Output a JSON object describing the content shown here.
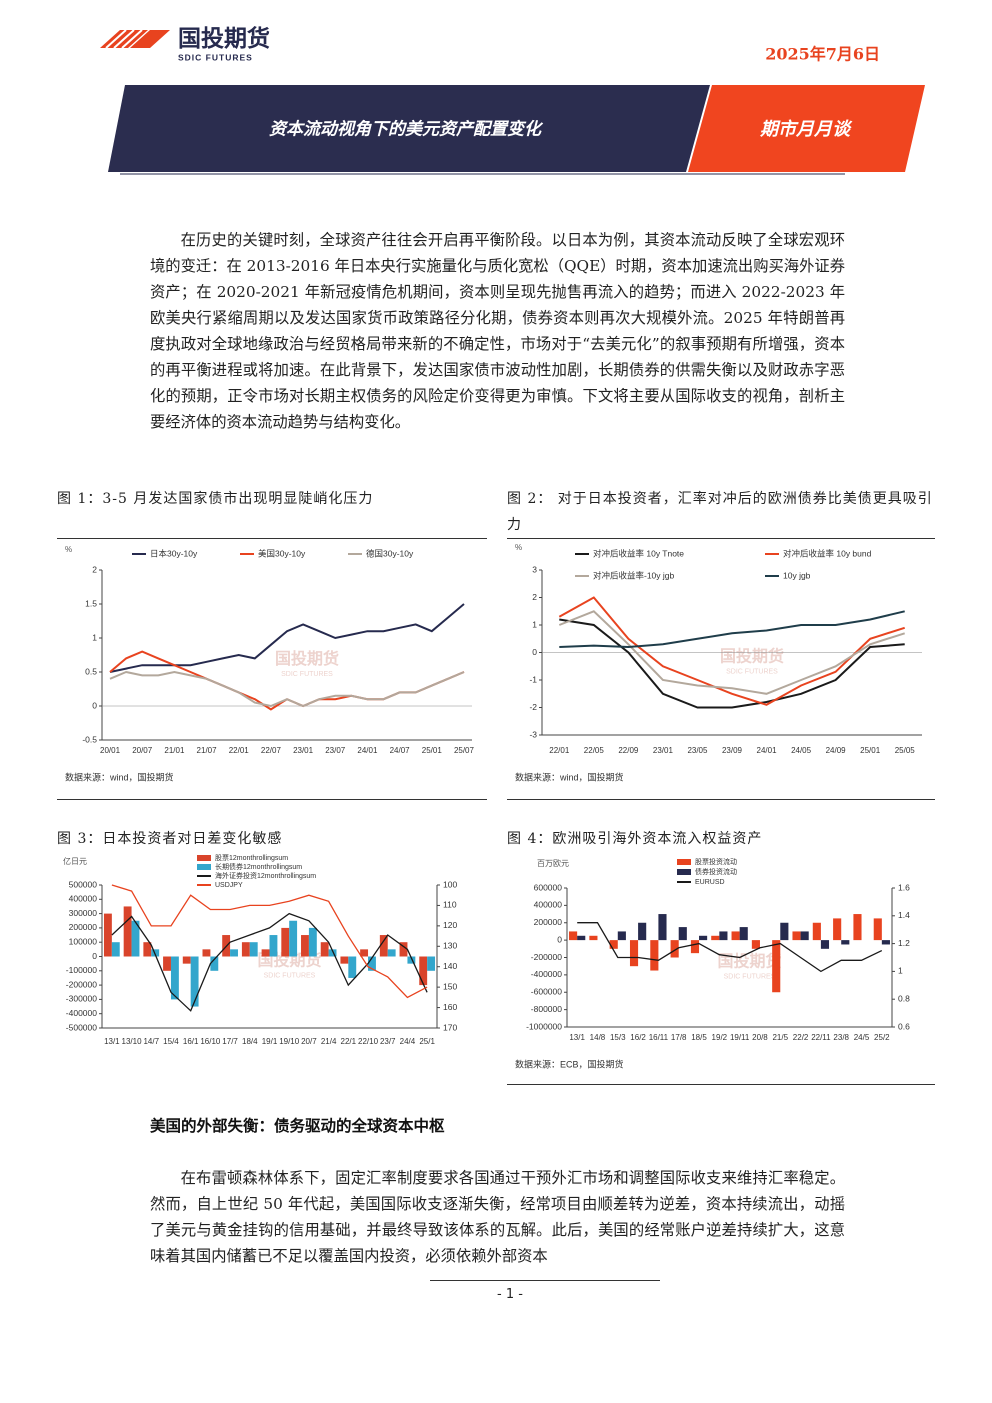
{
  "header": {
    "logo_cn": "国投期货",
    "logo_en": "SDIC FUTURES",
    "date": "2025年7月6日",
    "title": "资本流动视角下的美元资产配置变化",
    "column": "期市月月谈"
  },
  "intro": "在历史的关键时刻，全球资产往往会开启再平衡阶段。以日本为例，其资本流动反映了全球宏观环境的变迁：在 2013-2016 年日本央行实施量化与质化宽松（QQE）时期，资本加速流出购买海外证券资产；在 2020-2021 年新冠疫情危机期间，资本则呈现先抛售再流入的趋势；而进入 2022-2023 年欧美央行紧缩周期以及发达国家货币政策路径分化期，债券资本则再次大规模外流。2025 年特朗普再度执政对全球地缘政治与经贸格局带来新的不确定性，市场对于“去美元化”的叙事预期有所增强，资本的再平衡进程或将加速。在此背景下，发达国家债市波动性加剧，长期债券的供需失衡以及财政赤字恶化的预期，正令市场对长期主权债务的风险定价变得更为审慎。下文将主要从国际收支的视角，剖析主要经济体的资本流动趋势与结构变化。",
  "figures": [
    {
      "caption": "图 1：3-5 月发达国家债市出现明显陡峭化压力",
      "chart": {
        "type": "line",
        "y_label": "%",
        "ylim": [
          -0.5,
          2
        ],
        "yticks": [
          -0.5,
          0,
          0.5,
          1,
          1.5,
          2
        ],
        "categories": [
          "20/01",
          null,
          "20/07",
          null,
          "21/01",
          null,
          "21/07",
          null,
          "22/01",
          null,
          "22/07",
          null,
          "23/01",
          null,
          "23/07",
          null,
          "24/01",
          null,
          "24/07",
          null,
          "25/01",
          null,
          "25/07"
        ],
        "series": [
          {
            "name": "日本30y-10y",
            "color": "#262a4e",
            "values": [
              0.5,
              0.55,
              0.6,
              0.6,
              0.6,
              0.6,
              0.65,
              0.7,
              0.75,
              0.7,
              0.9,
              1.1,
              1.2,
              1.1,
              1.0,
              1.05,
              1.1,
              1.1,
              1.15,
              1.2,
              1.1,
              1.3,
              1.5
            ]
          },
          {
            "name": "美国30y-10y",
            "color": "#e8431f",
            "values": [
              0.5,
              0.7,
              0.8,
              0.7,
              0.6,
              0.5,
              0.4,
              0.3,
              0.2,
              0.1,
              -0.05,
              0.1,
              0.0,
              0.1,
              0.1,
              0.15,
              0.1,
              0.1,
              0.2,
              0.2,
              0.3,
              0.4,
              0.5
            ]
          },
          {
            "name": "德国30y-10y",
            "color": "#b3a89c",
            "values": [
              0.4,
              0.5,
              0.45,
              0.45,
              0.5,
              0.45,
              0.4,
              0.3,
              0.2,
              0.05,
              0.0,
              0.1,
              0.0,
              0.1,
              0.15,
              0.15,
              0.1,
              0.1,
              0.2,
              0.2,
              0.3,
              0.4,
              0.5
            ]
          }
        ],
        "source": "数据来源：wind，国投期货"
      }
    },
    {
      "caption": "图 2：  对于日本投资者，汇率对冲后的欧洲债券比美债更具吸引力",
      "chart": {
        "type": "line",
        "y_label": "%",
        "ylim": [
          -3,
          3
        ],
        "yticks": [
          -3,
          -2,
          -1,
          0,
          1,
          2,
          3
        ],
        "categories": [
          "22/01",
          "22/05",
          "22/09",
          "23/01",
          "23/05",
          "23/09",
          "24/01",
          "24/05",
          "24/09",
          "25/01",
          "25/05"
        ],
        "series": [
          {
            "name": "对冲后收益率 10y Tnote",
            "color": "#1a1a1a",
            "values": [
              1.2,
              1.0,
              0.0,
              -1.5,
              -2.0,
              -2.0,
              -1.8,
              -1.5,
              -1.0,
              0.2,
              0.3
            ]
          },
          {
            "name": "对冲后收益率 10y bund",
            "color": "#e8431f",
            "values": [
              1.3,
              2.0,
              0.5,
              -0.5,
              -1.0,
              -1.5,
              -1.9,
              -1.2,
              -0.7,
              0.5,
              0.9
            ]
          },
          {
            "name": "对冲后收益率-10y jgb",
            "color": "#b3a89c",
            "values": [
              1.0,
              1.5,
              0.3,
              -1.0,
              -1.2,
              -1.3,
              -1.5,
              -1.0,
              -0.5,
              0.3,
              0.7
            ]
          },
          {
            "name": "10y jgb",
            "color": "#1f3d4a",
            "values": [
              0.2,
              0.25,
              0.2,
              0.3,
              0.5,
              0.7,
              0.8,
              1.0,
              1.0,
              1.2,
              1.5
            ]
          }
        ],
        "source": "数据来源：wind，国投期货"
      }
    },
    {
      "caption": "图 3：日本投资者对日差变化敏感",
      "chart": {
        "type": "combo",
        "y_label": "亿日元",
        "ylim": [
          -500000,
          500000
        ],
        "yticks": [
          -500000,
          -400000,
          -300000,
          -200000,
          -100000,
          0,
          100000,
          200000,
          300000,
          400000,
          500000
        ],
        "y2lim": [
          170,
          100
        ],
        "y2ticks": [
          100,
          110,
          120,
          130,
          140,
          150,
          160,
          170
        ],
        "categories": [
          "13/1",
          "13/10",
          "14/7",
          "15/4",
          "16/1",
          "16/10",
          "17/7",
          "18/4",
          "19/1",
          "19/10",
          "20/7",
          "21/4",
          "22/1",
          "22/10",
          "23/7",
          "24/4",
          "25/1"
        ],
        "series": [
          {
            "name": "股票12monthrollingsum",
            "kind": "bar",
            "color": "#d9442b",
            "values": [
              300000,
              350000,
              100000,
              -100000,
              -50000,
              50000,
              150000,
              100000,
              50000,
              200000,
              150000,
              100000,
              -50000,
              50000,
              150000,
              100000,
              -200000
            ]
          },
          {
            "name": "长期债券12monthrollingsum",
            "kind": "bar",
            "color": "#33a6cc",
            "values": [
              100000,
              250000,
              50000,
              -300000,
              -350000,
              -100000,
              50000,
              100000,
              150000,
              250000,
              200000,
              50000,
              -150000,
              -100000,
              50000,
              -50000,
              -100000
            ]
          },
          {
            "name": "海外证券投资12monthrollingsum",
            "kind": "line",
            "color": "#1a1a1a",
            "values": [
              150000,
              280000,
              80000,
              -250000,
              -380000,
              -50000,
              100000,
              150000,
              200000,
              300000,
              250000,
              100000,
              -200000,
              -50000,
              150000,
              50000,
              -250000
            ]
          },
          {
            "name": "USDJPY",
            "kind": "line",
            "axis": "y2",
            "color": "#e8431f",
            "values": [
              100,
              103,
              120,
              120,
              105,
              112,
              112,
              110,
              110,
              108,
              105,
              108,
              125,
              140,
              145,
              155,
              150
            ]
          }
        ]
      }
    },
    {
      "caption": "图 4：欧洲吸引海外资本流入权益资产",
      "chart": {
        "type": "combo",
        "y_label": "百万欧元",
        "ylim": [
          -1000000,
          600000
        ],
        "yticks": [
          -1000000,
          -800000,
          -600000,
          -400000,
          -200000,
          0,
          200000,
          400000,
          600000
        ],
        "y2lim": [
          0.6,
          1.6
        ],
        "y2ticks": [
          0.6,
          0.8,
          1,
          1.2,
          1.4,
          1.6
        ],
        "categories": [
          "13/1",
          "14/8",
          "15/3",
          "16/2",
          "16/11",
          "17/8",
          "18/5",
          "19/2",
          "19/11",
          "20/8",
          "21/5",
          "22/2",
          "22/11",
          "23/8",
          "24/5",
          "25/2"
        ],
        "series": [
          {
            "name": "股票投资流动",
            "kind": "bar",
            "color": "#e8431f",
            "values": [
              100000,
              50000,
              -100000,
              -300000,
              -350000,
              -200000,
              -150000,
              50000,
              100000,
              -100000,
              -600000,
              100000,
              200000,
              250000,
              300000,
              250000
            ]
          },
          {
            "name": "债券投资流动",
            "kind": "bar",
            "color": "#262a4e",
            "values": [
              50000,
              0,
              100000,
              200000,
              300000,
              150000,
              50000,
              100000,
              150000,
              0,
              200000,
              100000,
              -100000,
              -50000,
              0,
              -50000
            ]
          },
          {
            "name": "EURUSD",
            "kind": "line",
            "axis": "y2",
            "color": "#1a1a1a",
            "values": [
              1.35,
              1.35,
              1.1,
              1.1,
              1.08,
              1.17,
              1.2,
              1.12,
              1.1,
              1.17,
              1.2,
              1.1,
              1.0,
              1.08,
              1.08,
              1.15
            ]
          }
        ],
        "source": "数据来源：ECB，国投期货"
      }
    }
  ],
  "section_heading": "美国的外部失衡：债务驱动的全球资本中枢",
  "body": "在布雷顿森林体系下，固定汇率制度要求各国通过干预外汇市场和调整国际收支来维持汇率稳定。然而，自上世纪 50 年代起，美国国际收支逐渐失衡，经常项目由顺差转为逆差，资本持续流出，动摇了美元与黄金挂钩的信用基础，并最终导致该体系的瓦解。此后，美国的经常账户逆差持续扩大，这意味着其国内储蓄已不足以覆盖国内投资，必须依赖外部资本",
  "page_number": "- 1 -"
}
